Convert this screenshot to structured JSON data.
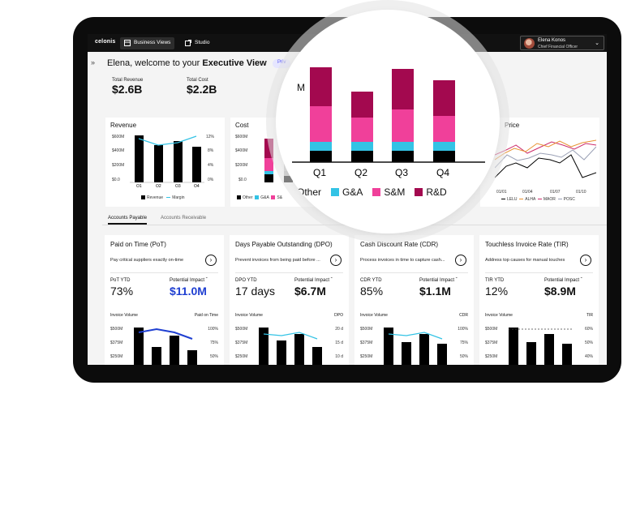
{
  "topbar": {
    "logo": "celonis",
    "tabs": [
      {
        "label": "Business Views",
        "icon": "grid-icon"
      },
      {
        "label": "Studio",
        "icon": "external-link-icon"
      }
    ],
    "user": {
      "name": "Elena Konos",
      "role": "Chief Financial Officer"
    }
  },
  "header": {
    "collapse": "»",
    "welcome_prefix": "Elena, welcome to your",
    "welcome_bold": "Executive View",
    "pill": "Priv"
  },
  "kpis": {
    "revenue": {
      "label": "Total Revenue",
      "value": "$2.6B"
    },
    "cost": {
      "label": "Total Cost",
      "value": "$2.2B"
    }
  },
  "revenue_chart": {
    "title": "Revenue",
    "yleft": [
      "$600M",
      "$400M",
      "$200M",
      "$0.0"
    ],
    "yright": [
      "12%",
      "8%",
      "4%",
      "0%"
    ],
    "legend": [
      "Revenue",
      "Margin"
    ],
    "colors": {
      "revenue": "#000000",
      "margin": "#33c3e5"
    }
  },
  "cost_chart": {
    "title": "Cost",
    "title_suffix": "M",
    "yleft": [
      "$600M",
      "$400M",
      "$200M",
      "$0.0"
    ],
    "legend": [
      "Other",
      "G&A",
      "S&"
    ]
  },
  "stock_chart": {
    "title": "Price",
    "xticks": [
      "01/01",
      "01/04",
      "01/07",
      "01/10"
    ],
    "legend": [
      "LELU",
      "ALHA",
      "MAOR",
      "POSC"
    ],
    "colors": {
      "LELU": "#000000",
      "ALHA": "#e8912f",
      "MAOR": "#cc2b6b",
      "POSC": "#9aa0b5"
    }
  },
  "tabs": {
    "accounts_payable": "Accounts Payable",
    "accounts_receivable": "Accounts Receivable"
  },
  "metrics": [
    {
      "title": "Paid on Time (PoT)",
      "desc": "Pay critical suppliers exactly on-time",
      "ytd_label": "PoT YTD",
      "ytd_value": "73%",
      "impact_label": "Potential Impact",
      "impact_value": "$11.0M",
      "impact_color": "#1f3fd1",
      "sub_left": "Invoice Volume",
      "sub_right": "Paid on Time",
      "y_left": [
        "$500M",
        "$375M",
        "$250M"
      ],
      "y_right": [
        "100%",
        "75%",
        "50%"
      ]
    },
    {
      "title": "Days Payable Outstanding (DPO)",
      "desc": "Prevent invoices from being paid before ...",
      "ytd_label": "DPO YTD",
      "ytd_value": "17 days",
      "impact_label": "Potential Impact",
      "impact_value": "$6.7M",
      "impact_color": "#111111",
      "sub_left": "Invoice Volume",
      "sub_right": "DPO",
      "y_left": [
        "$500M",
        "$375M",
        "$250M"
      ],
      "y_right": [
        "20 d",
        "15 d",
        "10 d"
      ]
    },
    {
      "title": "Cash Discount Rate (CDR)",
      "desc": "Process invoices in time to capture cash...",
      "ytd_label": "CDR YTD",
      "ytd_value": "85%",
      "impact_label": "Potential Impact",
      "impact_value": "$1.1M",
      "impact_color": "#111111",
      "sub_left": "Invoice Volume",
      "sub_right": "CDR",
      "y_left": [
        "$500M",
        "$375M",
        "$250M"
      ],
      "y_right": [
        "100%",
        "75%",
        "50%"
      ]
    },
    {
      "title": "Touchless Invoice Rate (TIR)",
      "desc": "Address top causes for manual touches",
      "ytd_label": "TIR YTD",
      "ytd_value": "12%",
      "impact_label": "Potential Impact",
      "impact_value": "$8.9M",
      "impact_color": "#111111",
      "sub_left": "Invoice Volume",
      "sub_right": "TIR",
      "y_left": [
        "$500M",
        "$375M",
        "$250M"
      ],
      "y_right": [
        "60%",
        "50%",
        "40%"
      ]
    }
  ],
  "zoom": {
    "categories": [
      "Q1",
      "Q2",
      "Q3",
      "Q4"
    ],
    "legend": [
      "Other",
      "G&A",
      "S&M",
      "R&D"
    ],
    "colors": {
      "Other": "#000000",
      "G&A": "#33c3e5",
      "S&M": "#f0409a",
      "R&D": "#a3094f"
    }
  }
}
